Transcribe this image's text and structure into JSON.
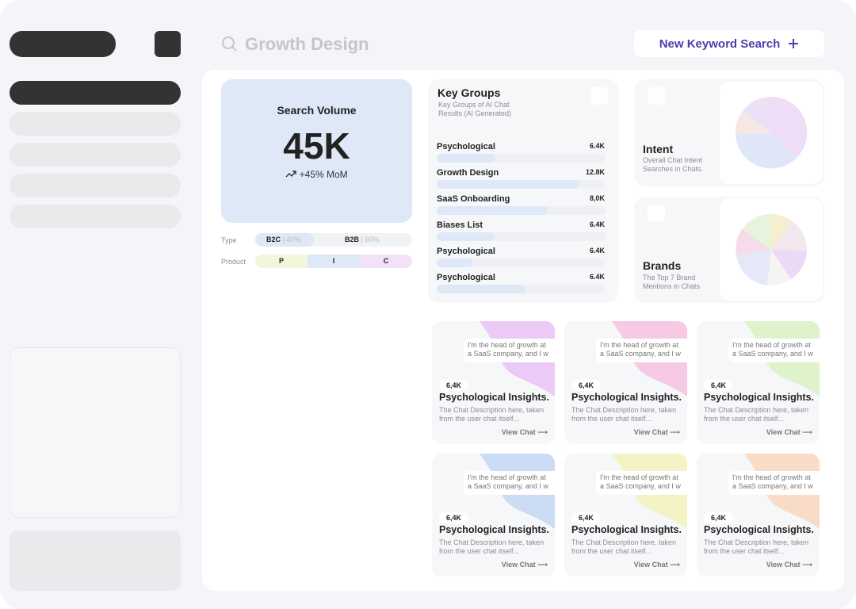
{
  "header": {
    "title": "Growth Design",
    "button": "New Keyword Search"
  },
  "search_volume": {
    "title": "Search Volume",
    "value": "45K",
    "change": "+45% MoM"
  },
  "type": {
    "label": "Type",
    "segments": [
      {
        "name": "B2C",
        "share": "40%"
      },
      {
        "name": "B2B",
        "share": "60%"
      }
    ]
  },
  "product": {
    "label": "Product",
    "segments": [
      "P",
      "I",
      "C"
    ]
  },
  "key_groups": {
    "title": "Key Groups",
    "description": "Key Groups of AI Chat Results (AI Generated)",
    "rows": [
      {
        "label": "Psychological",
        "value": "6.4K"
      },
      {
        "label": "Growth Design",
        "value": "12.8K"
      },
      {
        "label": "SaaS Onboarding",
        "value": "8,0K"
      },
      {
        "label": "Biases List",
        "value": "6.4K"
      },
      {
        "label": "Psychological",
        "value": "6.4K"
      },
      {
        "label": "Psychological",
        "value": "6.4K"
      }
    ]
  },
  "intent": {
    "title": "Intent",
    "description": "Overall Chat Intent Searches in Chats."
  },
  "brands": {
    "title": "Brands",
    "description": "The Top 7 Brand Mentions in Chats"
  },
  "chats": [
    {
      "quote": "I'm the head of growth at a SaaS company, and I w",
      "count": "6,4K",
      "title": "Psychological Insights.",
      "description": "The Chat Description here, taken from the user chat itself...",
      "link": "View Chat",
      "color": "#ecc9f6"
    },
    {
      "quote": "I'm the head of growth at a SaaS company, and I w",
      "count": "6,4K",
      "title": "Psychological Insights.",
      "description": "The Chat Description here, taken from the user chat itself...",
      "link": "View Chat",
      "color": "#f6c9e4"
    },
    {
      "quote": "I'm the head of growth at a SaaS company, and I w",
      "count": "6,4K",
      "title": "Psychological Insights.",
      "description": "The Chat Description here, taken from the user chat itself...",
      "link": "View Chat",
      "color": "#def3cc"
    },
    {
      "quote": "I'm the head of growth at a SaaS company, and I w",
      "count": "6,4K",
      "title": "Psychological Insights.",
      "description": "The Chat Description here, taken from the user chat itself...",
      "link": "View Chat",
      "color": "#cddcf5"
    },
    {
      "quote": "I'm the head of growth at a SaaS company, and I w",
      "count": "6,4K",
      "title": "Psychological Insights.",
      "description": "The Chat Description here, taken from the user chat itself...",
      "link": "View Chat",
      "color": "#f3f3c6"
    },
    {
      "quote": "I'm the head of growth at a SaaS company, and I w",
      "count": "6,4K",
      "title": "Psychological Insights.",
      "description": "The Chat Description here, taken from the user chat itself...",
      "link": "View Chat",
      "color": "#f8dcc8"
    }
  ]
}
